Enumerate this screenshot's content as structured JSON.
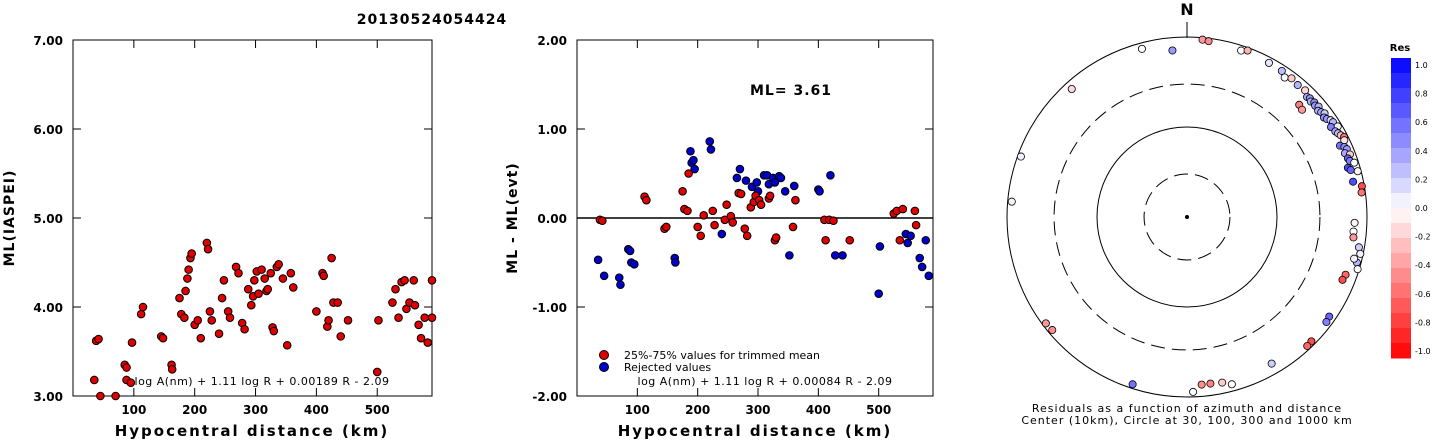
{
  "page_title": "20130524054424",
  "chart_data": [
    {
      "type": "scatter",
      "xlabel": "Hypocentral distance (km)",
      "ylabel": "ML(IASPEI)",
      "xlim": [
        0,
        590
      ],
      "ylim": [
        3.0,
        7.0
      ],
      "xticks": [
        100,
        200,
        300,
        400,
        500
      ],
      "xtick_labels": [
        "100",
        "200",
        "300",
        "400",
        "500"
      ],
      "yticks": [
        3.0,
        4.0,
        5.0,
        6.0,
        7.0
      ],
      "ytick_labels": [
        "3.00",
        "4.00",
        "5.00",
        "6.00",
        "7.00"
      ],
      "formula": "log A(nm) + 1.11 log R + 0.00189 R - 2.09",
      "point_color": "#e00000",
      "points": [
        [
          38,
          3.62
        ],
        [
          42,
          3.64
        ],
        [
          35,
          3.18
        ],
        [
          45,
          3.0
        ],
        [
          70,
          3.0
        ],
        [
          85,
          3.35
        ],
        [
          88,
          3.32
        ],
        [
          88,
          3.18
        ],
        [
          95,
          3.15
        ],
        [
          97,
          3.6
        ],
        [
          112,
          3.92
        ],
        [
          115,
          4.0
        ],
        [
          145,
          3.67
        ],
        [
          148,
          3.65
        ],
        [
          162,
          3.35
        ],
        [
          163,
          3.3
        ],
        [
          175,
          4.1
        ],
        [
          178,
          3.92
        ],
        [
          183,
          3.88
        ],
        [
          185,
          4.18
        ],
        [
          188,
          4.32
        ],
        [
          190,
          4.42
        ],
        [
          193,
          4.55
        ],
        [
          195,
          4.6
        ],
        [
          200,
          3.8
        ],
        [
          205,
          3.85
        ],
        [
          210,
          3.65
        ],
        [
          220,
          4.72
        ],
        [
          222,
          4.65
        ],
        [
          225,
          3.95
        ],
        [
          228,
          3.85
        ],
        [
          240,
          3.7
        ],
        [
          245,
          4.1
        ],
        [
          248,
          4.3
        ],
        [
          255,
          3.95
        ],
        [
          258,
          3.88
        ],
        [
          268,
          4.45
        ],
        [
          272,
          4.38
        ],
        [
          278,
          3.82
        ],
        [
          282,
          3.75
        ],
        [
          288,
          4.2
        ],
        [
          293,
          4.02
        ],
        [
          296,
          4.12
        ],
        [
          298,
          4.3
        ],
        [
          302,
          4.4
        ],
        [
          305,
          4.15
        ],
        [
          310,
          4.42
        ],
        [
          315,
          4.32
        ],
        [
          318,
          4.18
        ],
        [
          320,
          4.2
        ],
        [
          325,
          4.38
        ],
        [
          328,
          3.77
        ],
        [
          330,
          3.73
        ],
        [
          335,
          4.45
        ],
        [
          338,
          4.48
        ],
        [
          345,
          4.32
        ],
        [
          352,
          3.57
        ],
        [
          358,
          4.38
        ],
        [
          362,
          4.22
        ],
        [
          400,
          3.95
        ],
        [
          410,
          4.38
        ],
        [
          412,
          4.35
        ],
        [
          418,
          3.78
        ],
        [
          420,
          3.85
        ],
        [
          425,
          4.55
        ],
        [
          428,
          4.05
        ],
        [
          435,
          4.05
        ],
        [
          440,
          3.67
        ],
        [
          452,
          3.85
        ],
        [
          500,
          3.27
        ],
        [
          502,
          3.85
        ],
        [
          525,
          4.05
        ],
        [
          530,
          4.2
        ],
        [
          535,
          3.88
        ],
        [
          540,
          4.28
        ],
        [
          545,
          4.3
        ],
        [
          548,
          3.98
        ],
        [
          553,
          4.05
        ],
        [
          560,
          4.3
        ],
        [
          562,
          4.02
        ],
        [
          568,
          3.8
        ],
        [
          572,
          3.65
        ],
        [
          578,
          3.88
        ],
        [
          583,
          3.6
        ],
        [
          590,
          4.3
        ],
        [
          590,
          3.88
        ]
      ]
    },
    {
      "type": "scatter",
      "xlabel": "Hypocentral distance (km)",
      "ylabel": "ML - ML(evt)",
      "xlim": [
        0,
        590
      ],
      "ylim": [
        -2.0,
        2.0
      ],
      "xticks": [
        100,
        200,
        300,
        400,
        500
      ],
      "xtick_labels": [
        "100",
        "200",
        "300",
        "400",
        "500"
      ],
      "yticks": [
        -2.0,
        -1.0,
        0.0,
        1.0,
        2.0
      ],
      "ytick_labels": [
        "-2.00",
        "-1.00",
        "0.00",
        "1.00",
        "2.00"
      ],
      "annotation": "ML= 3.61",
      "formula": "log A(nm) + 1.11 log R + 0.00084 R - 2.09",
      "legend": [
        {
          "label": "25%-75% values for trimmed mean",
          "color": "#e00000"
        },
        {
          "label": "Rejected values",
          "color": "#0000cc"
        }
      ],
      "trimmed": [
        [
          38,
          -0.02
        ],
        [
          42,
          -0.03
        ],
        [
          112,
          0.24
        ],
        [
          115,
          0.2
        ],
        [
          145,
          -0.12
        ],
        [
          148,
          -0.1
        ],
        [
          175,
          0.3
        ],
        [
          178,
          0.1
        ],
        [
          183,
          0.08
        ],
        [
          185,
          0.5
        ],
        [
          200,
          -0.1
        ],
        [
          205,
          -0.2
        ],
        [
          210,
          0.03
        ],
        [
          225,
          0.08
        ],
        [
          228,
          -0.08
        ],
        [
          245,
          -0.02
        ],
        [
          248,
          0.15
        ],
        [
          255,
          0.02
        ],
        [
          258,
          -0.05
        ],
        [
          268,
          0.28
        ],
        [
          272,
          0.27
        ],
        [
          278,
          -0.12
        ],
        [
          282,
          -0.2
        ],
        [
          288,
          0.12
        ],
        [
          293,
          0.18
        ],
        [
          296,
          0.25
        ],
        [
          302,
          0.2
        ],
        [
          305,
          0.15
        ],
        [
          318,
          0.22
        ],
        [
          320,
          0.25
        ],
        [
          328,
          -0.25
        ],
        [
          330,
          -0.22
        ],
        [
          358,
          -0.1
        ],
        [
          362,
          0.2
        ],
        [
          410,
          -0.02
        ],
        [
          412,
          -0.25
        ],
        [
          418,
          -0.02
        ],
        [
          425,
          -0.03
        ],
        [
          452,
          -0.25
        ],
        [
          525,
          0.05
        ],
        [
          530,
          0.08
        ],
        [
          535,
          -0.25
        ],
        [
          540,
          0.1
        ],
        [
          560,
          0.08
        ],
        [
          562,
          -0.08
        ]
      ],
      "rejected": [
        [
          35,
          -0.47
        ],
        [
          45,
          -0.65
        ],
        [
          70,
          -0.67
        ],
        [
          72,
          -0.75
        ],
        [
          85,
          -0.35
        ],
        [
          88,
          -0.37
        ],
        [
          90,
          -0.5
        ],
        [
          95,
          -0.52
        ],
        [
          162,
          -0.45
        ],
        [
          163,
          -0.5
        ],
        [
          188,
          0.75
        ],
        [
          190,
          0.62
        ],
        [
          193,
          0.65
        ],
        [
          195,
          0.55
        ],
        [
          220,
          0.86
        ],
        [
          222,
          0.77
        ],
        [
          240,
          -0.18
        ],
        [
          265,
          0.45
        ],
        [
          270,
          0.55
        ],
        [
          280,
          0.42
        ],
        [
          290,
          0.35
        ],
        [
          298,
          0.4
        ],
        [
          300,
          0.3
        ],
        [
          310,
          0.48
        ],
        [
          315,
          0.48
        ],
        [
          318,
          0.38
        ],
        [
          325,
          0.45
        ],
        [
          328,
          0.4
        ],
        [
          335,
          0.47
        ],
        [
          338,
          0.45
        ],
        [
          345,
          0.3
        ],
        [
          352,
          -0.42
        ],
        [
          360,
          0.36
        ],
        [
          400,
          0.32
        ],
        [
          402,
          0.3
        ],
        [
          420,
          0.48
        ],
        [
          428,
          -0.42
        ],
        [
          440,
          -0.42
        ],
        [
          500,
          -0.85
        ],
        [
          502,
          -0.32
        ],
        [
          545,
          -0.18
        ],
        [
          548,
          -0.28
        ],
        [
          553,
          -0.2
        ],
        [
          568,
          -0.45
        ],
        [
          572,
          -0.55
        ],
        [
          578,
          -0.25
        ],
        [
          583,
          -0.65
        ]
      ]
    },
    {
      "type": "scatter",
      "caption_line1": "Residuals as a function of azimuth and distance",
      "caption_line2": "Center (10km), Circle at 30, 100, 300 and 1000 km",
      "north_label": "N",
      "colorbar_title": "Res",
      "colorbar_ticks": [
        "1.0",
        "0.8",
        "0.6",
        "0.4",
        "0.2",
        "0.0",
        "-0.2",
        "-0.4",
        "-0.6",
        "-0.8",
        "-1.0"
      ],
      "rings_km": [
        30,
        100,
        300,
        1000
      ],
      "stations": [
        {
          "az": 5,
          "dist": 950,
          "res": -0.4
        },
        {
          "az": 7,
          "dist": 930,
          "res": -0.45
        },
        {
          "az": 18,
          "dist": 880,
          "res": 0.0
        },
        {
          "az": 20,
          "dist": 930,
          "res": -0.3
        },
        {
          "az": 28,
          "dist": 870,
          "res": 0.1
        },
        {
          "az": 33,
          "dist": 860,
          "res": 0.25
        },
        {
          "az": 35,
          "dist": 780,
          "res": 0.0
        },
        {
          "az": 37,
          "dist": 850,
          "res": -0.2
        },
        {
          "az": 40,
          "dist": 820,
          "res": 0.3
        },
        {
          "az": 43,
          "dist": 840,
          "res": -0.15
        },
        {
          "az": 45,
          "dist": 770,
          "res": 0.35
        },
        {
          "az": 46,
          "dist": 790,
          "res": 0.4
        },
        {
          "az": 47,
          "dist": 760,
          "res": 0.3
        },
        {
          "az": 48,
          "dist": 800,
          "res": 0.45
        },
        {
          "az": 49,
          "dist": 770,
          "res": 0.4
        },
        {
          "az": 50,
          "dist": 810,
          "res": 0.3
        },
        {
          "az": 51,
          "dist": 750,
          "res": 0.3
        },
        {
          "az": 52,
          "dist": 780,
          "res": 0.35
        },
        {
          "az": 53,
          "dist": 820,
          "res": 0.2
        },
        {
          "az": 54,
          "dist": 760,
          "res": 0.45
        },
        {
          "az": 55,
          "dist": 790,
          "res": 0.4
        },
        {
          "az": 56,
          "dist": 840,
          "res": 0.15
        },
        {
          "az": 57,
          "dist": 860,
          "res": 0.3
        },
        {
          "az": 58,
          "dist": 770,
          "res": 0.5
        },
        {
          "az": 59,
          "dist": 900,
          "res": 0.05
        },
        {
          "az": 60,
          "dist": 800,
          "res": 0.35
        },
        {
          "az": 61,
          "dist": 830,
          "res": 0.25
        },
        {
          "az": 62,
          "dist": 860,
          "res": -0.25
        },
        {
          "az": 63,
          "dist": 910,
          "res": -0.55
        },
        {
          "az": 64,
          "dist": 880,
          "res": -0.1
        },
        {
          "az": 65,
          "dist": 750,
          "res": 0.55
        },
        {
          "az": 66,
          "dist": 820,
          "res": 0.45
        },
        {
          "az": 67,
          "dist": 850,
          "res": 0.4
        },
        {
          "az": 68,
          "dist": 780,
          "res": 0.35
        },
        {
          "az": 69,
          "dist": 870,
          "res": -0.2
        },
        {
          "az": 70,
          "dist": 800,
          "res": 0.6
        },
        {
          "az": 71,
          "dist": 820,
          "res": 0.5
        },
        {
          "az": 72,
          "dist": 900,
          "res": 0.0
        },
        {
          "az": 75,
          "dist": 920,
          "res": -0.05
        },
        {
          "az": 45,
          "dist": 580,
          "res": -0.5
        },
        {
          "az": 47,
          "dist": 560,
          "res": -0.4
        },
        {
          "az": 73,
          "dist": 740,
          "res": 0.7
        },
        {
          "az": 74,
          "dist": 780,
          "res": 0.6
        },
        {
          "az": 78,
          "dist": 770,
          "res": 0.7
        },
        {
          "az": 80,
          "dist": 940,
          "res": -0.7
        },
        {
          "az": 82,
          "dist": 910,
          "res": -0.55
        },
        {
          "az": 100,
          "dist": 870,
          "res": 0.2
        },
        {
          "az": 102,
          "dist": 930,
          "res": 0.05
        },
        {
          "az": 105,
          "dist": 900,
          "res": 0.3
        },
        {
          "az": 104,
          "dist": 820,
          "res": 0.05
        },
        {
          "az": 107,
          "dist": 960,
          "res": 0.0
        },
        {
          "az": 92,
          "dist": 730,
          "res": -0.05
        },
        {
          "az": 95,
          "dist": 720,
          "res": 0.0
        },
        {
          "az": 97,
          "dist": 730,
          "res": -0.4
        },
        {
          "az": 110,
          "dist": 750,
          "res": -0.6
        },
        {
          "az": 112,
          "dist": 730,
          "res": -0.7
        },
        {
          "az": 125,
          "dist": 850,
          "res": 0.6
        },
        {
          "az": 127,
          "dist": 870,
          "res": 0.5
        },
        {
          "az": 135,
          "dist": 900,
          "res": -0.7
        },
        {
          "az": 137,
          "dist": 910,
          "res": -0.6
        },
        {
          "az": 150,
          "dist": 760,
          "res": 0.2
        },
        {
          "az": 165,
          "dist": 840,
          "res": 0.0
        },
        {
          "az": 168,
          "dist": 760,
          "res": -0.2
        },
        {
          "az": 172,
          "dist": 740,
          "res": -0.5
        },
        {
          "az": 175,
          "dist": 740,
          "res": -0.45
        },
        {
          "az": 178,
          "dist": 880,
          "res": 0.0
        },
        {
          "az": 198,
          "dist": 900,
          "res": 0.55
        },
        {
          "az": 230,
          "dist": 900,
          "res": -0.45
        },
        {
          "az": 233,
          "dist": 920,
          "res": -0.4
        },
        {
          "az": 275,
          "dist": 900,
          "res": -0.05
        },
        {
          "az": 290,
          "dist": 920,
          "res": 0.05
        },
        {
          "az": 318,
          "dist": 820,
          "res": -0.15
        },
        {
          "az": 345,
          "dist": 860,
          "res": 0.0
        },
        {
          "az": 355,
          "dist": 720,
          "res": 0.4
        }
      ]
    }
  ]
}
